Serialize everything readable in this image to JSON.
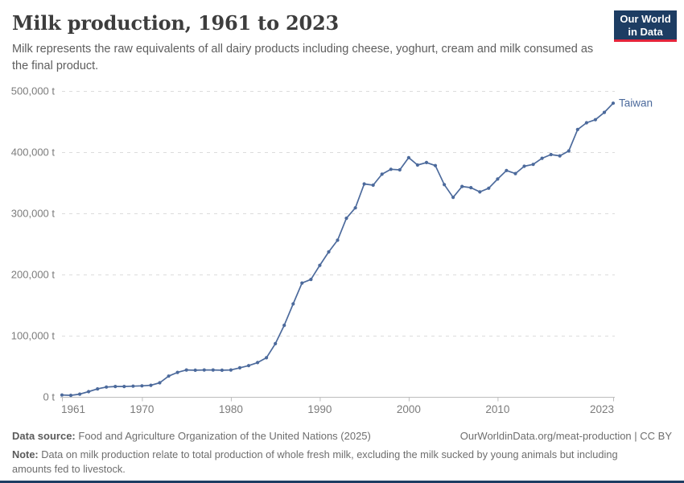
{
  "header": {
    "title": "Milk production, 1961 to 2023",
    "subtitle": "Milk represents the raw equivalents of all dairy products including cheese, yoghurt, cream and milk consumed as the final product."
  },
  "logo": {
    "line1": "Our World",
    "line2": "in Data",
    "bg_color": "#1d3d63",
    "accent_color": "#e5243b"
  },
  "chart_data": {
    "type": "line",
    "title": "Milk production, 1961 to 2023",
    "xlabel": "",
    "ylabel": "",
    "unit": "t",
    "xlim": [
      1961,
      2023
    ],
    "ylim": [
      0,
      500000
    ],
    "xticks": [
      1961,
      1970,
      1980,
      1990,
      2000,
      2010,
      2023
    ],
    "yticks": [
      0,
      100000,
      200000,
      300000,
      400000,
      500000
    ],
    "ytick_suffix": " t",
    "grid": "horizontal-dashed",
    "legend_position": "end-of-line-label",
    "series": [
      {
        "name": "Taiwan",
        "color": "#4C6A9C",
        "x": [
          1961,
          1962,
          1963,
          1964,
          1965,
          1966,
          1967,
          1968,
          1969,
          1970,
          1971,
          1972,
          1973,
          1974,
          1975,
          1976,
          1977,
          1978,
          1979,
          1980,
          1981,
          1982,
          1983,
          1984,
          1985,
          1986,
          1987,
          1988,
          1989,
          1990,
          1991,
          1992,
          1993,
          1994,
          1995,
          1996,
          1997,
          1998,
          1999,
          2000,
          2001,
          2002,
          2003,
          2004,
          2005,
          2006,
          2007,
          2008,
          2009,
          2010,
          2011,
          2012,
          2013,
          2014,
          2015,
          2016,
          2017,
          2018,
          2019,
          2020,
          2021,
          2022,
          2023
        ],
        "values": [
          3000,
          2500,
          4500,
          8500,
          13000,
          16000,
          17000,
          17000,
          17500,
          18000,
          19000,
          23000,
          34000,
          40000,
          44000,
          43500,
          44000,
          44000,
          43500,
          44000,
          47500,
          51000,
          56000,
          64000,
          87000,
          117000,
          152000,
          186000,
          192000,
          215000,
          237000,
          256000,
          292000,
          309000,
          348000,
          346000,
          364000,
          372000,
          371000,
          391000,
          379000,
          383000,
          378000,
          347000,
          326000,
          344000,
          342000,
          335000,
          341000,
          356000,
          370000,
          365000,
          377000,
          380000,
          390000,
          396000,
          394000,
          402000,
          437000,
          448000,
          453000,
          465000,
          480000
        ]
      }
    ]
  },
  "style": {
    "grid_color": "#dcdcdc",
    "axis_color": "#bdbdbd",
    "tick_label_color": "#7c7c7c"
  },
  "footer": {
    "source_label": "Data source:",
    "source_text": "Food and Agriculture Organization of the United Nations (2025)",
    "origin": "OurWorldinData.org/meat-production | CC BY",
    "note_label": "Note:",
    "note_text": "Data on milk production relate to total production of whole fresh milk, excluding the milk sucked by young animals but including amounts fed to livestock."
  }
}
